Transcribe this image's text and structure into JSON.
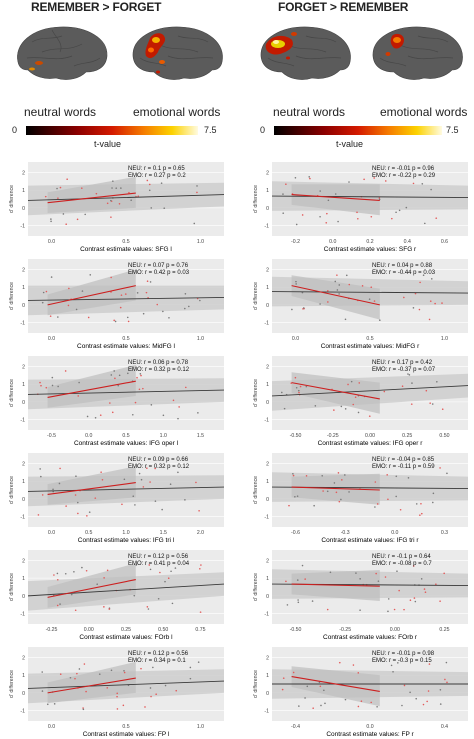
{
  "headers": [
    "REMEMBER > FORGET",
    "FORGET > REMEMBER"
  ],
  "conditions": [
    "neutral words",
    "emotional words",
    "neutral words",
    "emotional words"
  ],
  "colorbar": {
    "min": "0",
    "max": "7.5",
    "label": "t-value"
  },
  "colors": {
    "neu_line": "#3a3a3a",
    "emo_line": "#cc1f1f",
    "band": "#c9c9c9",
    "panel_bg": "#ebebeb",
    "point": "#e35b5b"
  },
  "ylabel": "d' difference",
  "panels": [
    {
      "id": "sfg-l",
      "xlabel": "Contrast estimate values: SFG l",
      "neu": "NEU:  r = 0.1    p = 0.65",
      "emo": "EMO:  r = 0.27   p = 0.2",
      "xticks": [
        "0.0",
        "0.5",
        "1.0"
      ],
      "yticks": [
        "2",
        "1",
        "0",
        "-1"
      ]
    },
    {
      "id": "sfg-r",
      "xlabel": "Contrast estimate values: SFG r",
      "neu": "NEU:  r = -0.01   p = 0.96",
      "emo": "EMO:  r = -0.22   p = 0.29",
      "xticks": [
        "-0.2",
        "0.0",
        "0.2",
        "0.4",
        "0.6"
      ],
      "yticks": [
        "2",
        "1",
        "0",
        "-1"
      ]
    },
    {
      "id": "midfg-l",
      "xlabel": "Contrast estimate values: MidFG l",
      "neu": "NEU:  r = 0.07   p = 0.76",
      "emo": "EMO:  r = 0.42   p = 0.03",
      "xticks": [
        "0.0",
        "0.5",
        "1.0"
      ],
      "yticks": [
        "2",
        "1",
        "0",
        "-1"
      ]
    },
    {
      "id": "midfg-r",
      "xlabel": "Contrast estimate values: MidFG r",
      "neu": "NEU:  r = 0.04    p = 0.88",
      "emo": "EMO:  r = -0.44  p = 0.03",
      "xticks": [
        "0.0",
        "0.5",
        "1.0"
      ],
      "yticks": [
        "2",
        "1",
        "0",
        "-1"
      ]
    },
    {
      "id": "ifgoper-l",
      "xlabel": "Contrast estimate values: IFG oper l",
      "neu": "NEU:  r = 0.06   p = 0.78",
      "emo": "EMO:  r = 0.32   p = 0.12",
      "xticks": [
        "-0.5",
        "0.0",
        "0.5",
        "1.0",
        "1.5"
      ],
      "yticks": [
        "2",
        "1",
        "0",
        "-1"
      ]
    },
    {
      "id": "ifgoper-r",
      "xlabel": "Contrast estimate values: IFG oper r",
      "neu": "NEU:  r = 0.17    p = 0.42",
      "emo": "EMO:  r = -0.37  p = 0.07",
      "xticks": [
        "-0.50",
        "-0.25",
        "0.00",
        "0.25",
        "0.50"
      ],
      "yticks": [
        "2",
        "1",
        "0",
        "-1"
      ]
    },
    {
      "id": "ifgtri-l",
      "xlabel": "Contrast estimate values: IFG tri l",
      "neu": "NEU:  r = 0.09   p = 0.66",
      "emo": "EMO:  r = 0.32   p = 0.12",
      "xticks": [
        "0.0",
        "0.5",
        "1.0",
        "1.5",
        "2.0"
      ],
      "yticks": [
        "2",
        "1",
        "0",
        "-1"
      ]
    },
    {
      "id": "ifgtri-r",
      "xlabel": "Contrast estimate values: IFG tri r",
      "neu": "NEU:  r = -0.04   p = 0.85",
      "emo": "EMO:  r = -0.11   p = 0.59",
      "xticks": [
        "-0.6",
        "-0.3",
        "0.0",
        "0.3"
      ],
      "yticks": [
        "2",
        "1",
        "0",
        "-1"
      ]
    },
    {
      "id": "forb-l",
      "xlabel": "Contrast estimate values: FOrb l",
      "neu": "NEU:  r = 0.12   p = 0.56",
      "emo": "EMO:  r = 0.41   p = 0.04",
      "xticks": [
        "-0.25",
        "0.00",
        "0.25",
        "0.50",
        "0.75"
      ],
      "yticks": [
        "2",
        "1",
        "0",
        "-1"
      ]
    },
    {
      "id": "forb-r",
      "xlabel": "Contrast estimate values: FOrb r",
      "neu": "NEU:  r = -0.1    p = 0.64",
      "emo": "EMO:  r = -0.08   p = 0.7",
      "xticks": [
        "-0.50",
        "-0.25",
        "0.00",
        "0.25"
      ],
      "yticks": [
        "2",
        "1",
        "0",
        "-1"
      ]
    },
    {
      "id": "fp-l",
      "xlabel": "Contrast estimate values: FP l",
      "neu": "NEU:  r = 0.12   p = 0.56",
      "emo": "EMO:  r = 0.34   p = 0.1",
      "xticks": [
        "0.0",
        "0.5",
        "1.0"
      ],
      "yticks": [
        "2",
        "1",
        "0",
        "-1"
      ]
    },
    {
      "id": "fp-r",
      "xlabel": "Contrast estimate values: FP r",
      "neu": "NEU:  r = -0.01   p = 0.98",
      "emo": "EMO:  r = -0.3    p = 0.15",
      "xticks": [
        "-0.4",
        "0.0",
        "0.4"
      ],
      "yticks": [
        "2",
        "1",
        "0",
        "-1"
      ]
    }
  ]
}
